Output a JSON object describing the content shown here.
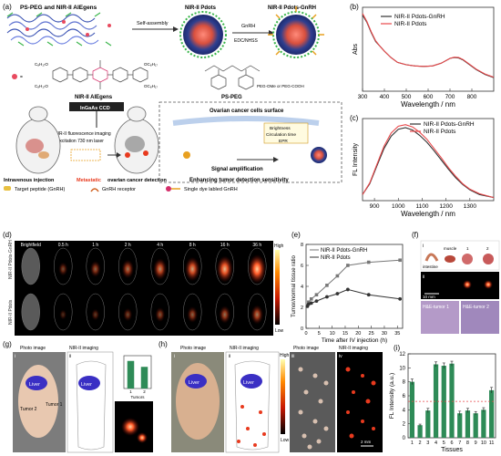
{
  "panels": {
    "a": {
      "label": "(a)",
      "title_left": "PS-PEG and NIR-II AIEgens",
      "self_assembly": "Self-assembly",
      "pdots": "NIR-II Pdots",
      "gnrh": "GnRH",
      "edc": "EDC/NHSS",
      "pdots_gnrh": "NIR-II Pdots-GnRH",
      "chem_c8a": "C₈H₁₇O",
      "chem_c8b": "OC₈H₁₇",
      "chem_c8c": "C₈H₁₇O",
      "chem_c8d": "OC₈H₁₇",
      "aiegens": "NIR-II AIEgens",
      "pso": "PEG-OMe or PEG-COOH",
      "psp": "PS-PEG",
      "ingaas": "InGaAs CCD",
      "imaging": "NIR-II fluorescence imaging",
      "excitation": "Excitation 730 nm laser",
      "iv_injection": "Intravenous injection",
      "metastatic": "Metastatic",
      "ovarian": "ovarian cancer detection",
      "ocs": "Ovarian cancer cells surface",
      "brightness": "Brightness",
      "circulation": "Circulation time",
      "epr": "EPR",
      "signal_amp": "Signal amplification",
      "enhancing": "Enhancing tumor detection sensitivity",
      "legend1": "Target peptide (GnRH)",
      "legend2": "GnRH receptor",
      "legend3": "Single dye labled GnRH"
    },
    "d": {
      "label": "(d)",
      "times": [
        "Brightfield",
        "0.5 h",
        "1 h",
        "2 h",
        "4 h",
        "8 h",
        "16 h",
        "36 h"
      ],
      "row1": "NIR-II Pdots-GnRH",
      "row2": "NIR-II Pdots",
      "high": "High",
      "low": "Low"
    },
    "f": {
      "label": "(f)",
      "i": "i",
      "ii": "ii",
      "intestine": "intestine",
      "muscle": "muscle",
      "n1": "1",
      "n2": "2",
      "scale": "10 mm",
      "he1": "H&E-tumor 1",
      "he2": "H&E-tumor 2"
    },
    "g": {
      "label": "(g)",
      "photo": "Photo image",
      "nir": "NIR-II imaging",
      "liver": "Liver",
      "tumor1": "Tumor 1",
      "tumor2": "Tumor 2",
      "i": "i",
      "ii": "ii",
      "iii": "iii",
      "tumors": "Tumors",
      "t1": "1",
      "t2": "2"
    },
    "h": {
      "label": "(h)",
      "photo": "Photo image",
      "nir": "NIR-II imaging",
      "liver": "Liver",
      "i": "i",
      "ii": "ii",
      "iii": "iii",
      "iv": "iv",
      "scale": "2 mm",
      "high": "High",
      "low": "Low"
    }
  },
  "colors": {
    "black_series": "#333333",
    "red_series": "#e8484a",
    "bar_green": "#2e8b57",
    "nir_red": "#e83a1e",
    "blue_liver": "#3a2fc4"
  },
  "chart_data": [
    {
      "id": "b",
      "label": "(b)",
      "type": "line",
      "xlabel": "Wavelength / nm",
      "ylabel": "Abs",
      "xlim": [
        300,
        900
      ],
      "xticks": [
        300,
        400,
        500,
        600,
        700,
        800
      ],
      "series": [
        {
          "name": "NIR-II Pdots-GnRH",
          "color": "#333333",
          "x": [
            300,
            320,
            340,
            360,
            380,
            400,
            430,
            460,
            500,
            540,
            580,
            620,
            660,
            700,
            720,
            740,
            760,
            790,
            820,
            860,
            900
          ],
          "y": [
            0.95,
            0.86,
            0.73,
            0.62,
            0.56,
            0.5,
            0.42,
            0.36,
            0.33,
            0.315,
            0.31,
            0.315,
            0.35,
            0.41,
            0.42,
            0.415,
            0.39,
            0.33,
            0.27,
            0.21,
            0.17
          ]
        },
        {
          "name": "NIR-II Pdots",
          "color": "#e8484a",
          "x": [
            300,
            320,
            340,
            360,
            380,
            400,
            430,
            460,
            500,
            540,
            580,
            620,
            660,
            700,
            720,
            740,
            760,
            790,
            820,
            860,
            900
          ],
          "y": [
            0.97,
            0.87,
            0.74,
            0.63,
            0.56,
            0.5,
            0.42,
            0.36,
            0.33,
            0.315,
            0.31,
            0.315,
            0.35,
            0.41,
            0.425,
            0.42,
            0.395,
            0.335,
            0.275,
            0.215,
            0.175
          ]
        }
      ]
    },
    {
      "id": "c",
      "label": "(c)",
      "type": "line",
      "xlabel": "Wavelength / nm",
      "ylabel": "FL Intensity",
      "xlim": [
        850,
        1400
      ],
      "xticks": [
        900,
        1000,
        1100,
        1200,
        1300
      ],
      "series": [
        {
          "name": "NIR-II Pdots-GnRH",
          "color": "#333333",
          "x": [
            850,
            880,
            910,
            940,
            970,
            1000,
            1030,
            1060,
            1090,
            1120,
            1150,
            1180,
            1210,
            1240,
            1270,
            1300,
            1340,
            1400
          ],
          "y": [
            0.08,
            0.22,
            0.45,
            0.68,
            0.84,
            0.93,
            0.95,
            0.92,
            0.85,
            0.76,
            0.65,
            0.53,
            0.41,
            0.3,
            0.21,
            0.14,
            0.08,
            0.04
          ]
        },
        {
          "name": "NIR-II Pdots",
          "color": "#e8484a",
          "x": [
            850,
            880,
            910,
            940,
            970,
            1000,
            1030,
            1060,
            1090,
            1120,
            1150,
            1180,
            1210,
            1240,
            1270,
            1300,
            1340,
            1400
          ],
          "y": [
            0.08,
            0.23,
            0.47,
            0.71,
            0.88,
            0.97,
            0.99,
            0.96,
            0.89,
            0.8,
            0.68,
            0.56,
            0.43,
            0.32,
            0.22,
            0.15,
            0.09,
            0.04
          ]
        }
      ]
    },
    {
      "id": "e",
      "label": "(e)",
      "type": "line",
      "xlabel": "Time after IV injection (h)",
      "ylabel": "Tumor/normal tissue ratio",
      "xlim": [
        0,
        37
      ],
      "ylim": [
        0,
        8
      ],
      "xticks": [
        0,
        5,
        10,
        15,
        20,
        25,
        30,
        35
      ],
      "yticks": [
        0,
        2,
        4,
        6,
        8
      ],
      "series": [
        {
          "name": "NIR-II Pdots-GnRH",
          "color": "#777777",
          "marker": "square",
          "x": [
            0.5,
            1,
            2,
            4,
            8,
            12,
            16,
            24,
            36
          ],
          "y": [
            2.2,
            2.5,
            2.8,
            3.2,
            4.1,
            5.0,
            6.0,
            6.3,
            6.5
          ]
        },
        {
          "name": "NIR-II Pdots",
          "color": "#333333",
          "marker": "circle",
          "x": [
            0.5,
            1,
            2,
            4,
            8,
            12,
            16,
            24,
            36
          ],
          "y": [
            2.1,
            2.3,
            2.4,
            2.6,
            3.0,
            3.3,
            3.7,
            3.2,
            2.8
          ]
        }
      ]
    },
    {
      "id": "g-iii",
      "type": "bar",
      "categories": [
        "1",
        "2"
      ],
      "values": [
        0.42,
        0.33
      ],
      "color": "#2e8b57",
      "ylim": [
        0,
        0.5
      ],
      "xlabel": "Tumors"
    },
    {
      "id": "i",
      "label": "(i)",
      "type": "bar",
      "xlabel": "Tissues",
      "ylabel": "FL Intensity (a.u.)",
      "categories": [
        "1",
        "2",
        "3",
        "4",
        "5",
        "6",
        "7",
        "8",
        "9",
        "10",
        "11"
      ],
      "values": [
        8.0,
        1.8,
        3.9,
        10.5,
        10.3,
        10.6,
        3.5,
        3.9,
        3.5,
        4.0,
        6.8
      ],
      "errors": [
        0.4,
        0.15,
        0.3,
        0.35,
        0.4,
        0.35,
        0.3,
        0.3,
        0.25,
        0.3,
        0.4
      ],
      "threshold": 5.2,
      "color": "#2e8b57",
      "ylim": [
        0,
        12
      ],
      "yticks": [
        0,
        2,
        4,
        6,
        8,
        10,
        12
      ]
    }
  ]
}
